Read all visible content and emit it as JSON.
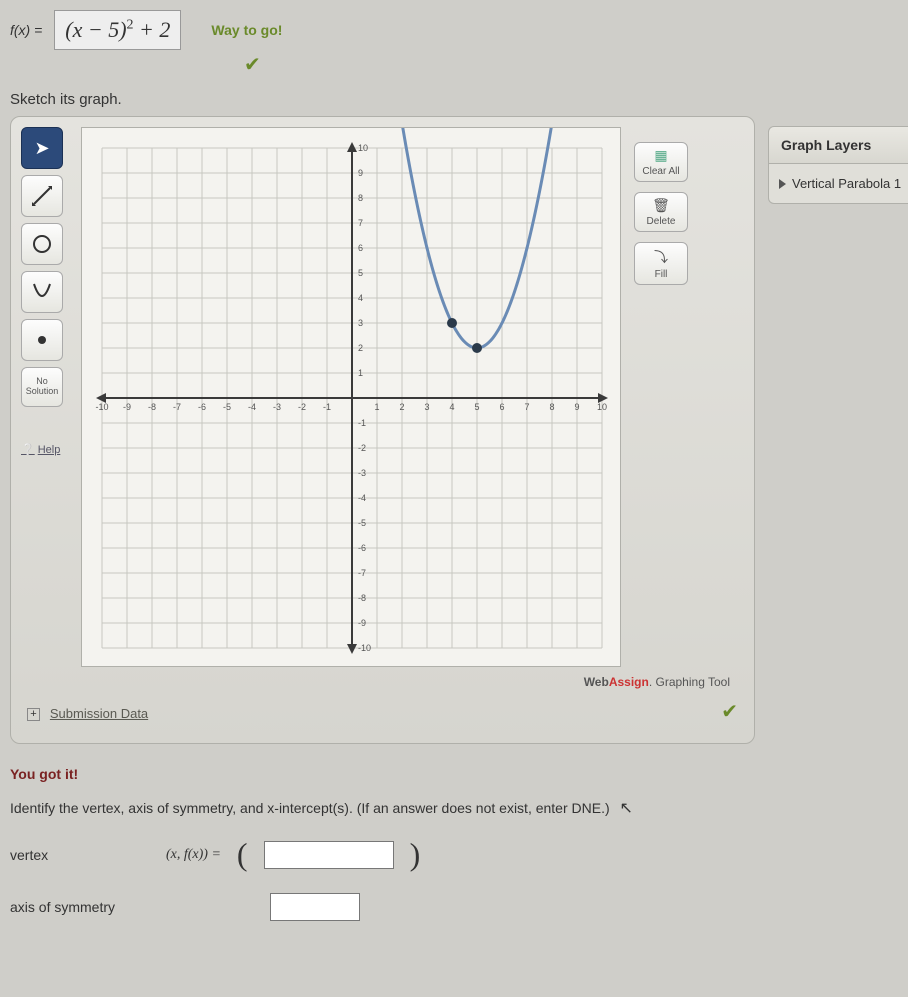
{
  "equation": {
    "lhs": "f(x) =",
    "rhs_html": "(x − 5)<sup>2</sup> + 2"
  },
  "feedback1": "Way to go!",
  "sketch_label": "Sketch its graph.",
  "toolbar": {
    "pointer": "↖",
    "line": "↗",
    "circle": "○",
    "parabola": "∪",
    "point": "•",
    "nosolution": "No\nSolution",
    "help": "Help"
  },
  "right_tools": {
    "clear": "Clear All",
    "delete": "Delete",
    "fill": "Fill"
  },
  "layers": {
    "header": "Graph Layers",
    "item1": "Vertical Parabola 1"
  },
  "brand": {
    "pre": "Web",
    "accent": "Assign",
    "suffix": ". Graphing Tool"
  },
  "submission": "Submission Data",
  "feedback2": "You got it!",
  "instruction": "Identify the vertex, axis of symmetry, and x-intercept(s). (If an answer does not exist, enter DNE.)",
  "vertex_label": "vertex",
  "vertex_expr": "(x, f(x))  =",
  "axis_label": "axis of symmetry",
  "chart": {
    "type": "scatter+parabola",
    "xlim": [
      -10,
      10
    ],
    "ylim": [
      -10,
      10
    ],
    "xticks": [
      -10,
      -9,
      -8,
      -7,
      -6,
      -5,
      -4,
      -3,
      -2,
      -1,
      1,
      2,
      3,
      4,
      5,
      6,
      7,
      8,
      9,
      10
    ],
    "yticks": [
      -10,
      -9,
      -8,
      -7,
      -6,
      -5,
      -4,
      -3,
      -2,
      -1,
      1,
      2,
      3,
      4,
      5,
      6,
      7,
      8,
      9,
      10
    ],
    "grid_color": "#c7c7c0",
    "axis_color": "#3a3a3a",
    "background": "#f4f3ef",
    "tick_font_size": 9,
    "parabola": {
      "vertex": [
        5,
        2
      ],
      "a": 1,
      "color": "#6a8bb5",
      "width": 3
    },
    "points": [
      {
        "x": 4,
        "y": 3,
        "color": "#2b3a4a",
        "r": 5
      },
      {
        "x": 5,
        "y": 2,
        "color": "#2b3a4a",
        "r": 5
      }
    ]
  }
}
